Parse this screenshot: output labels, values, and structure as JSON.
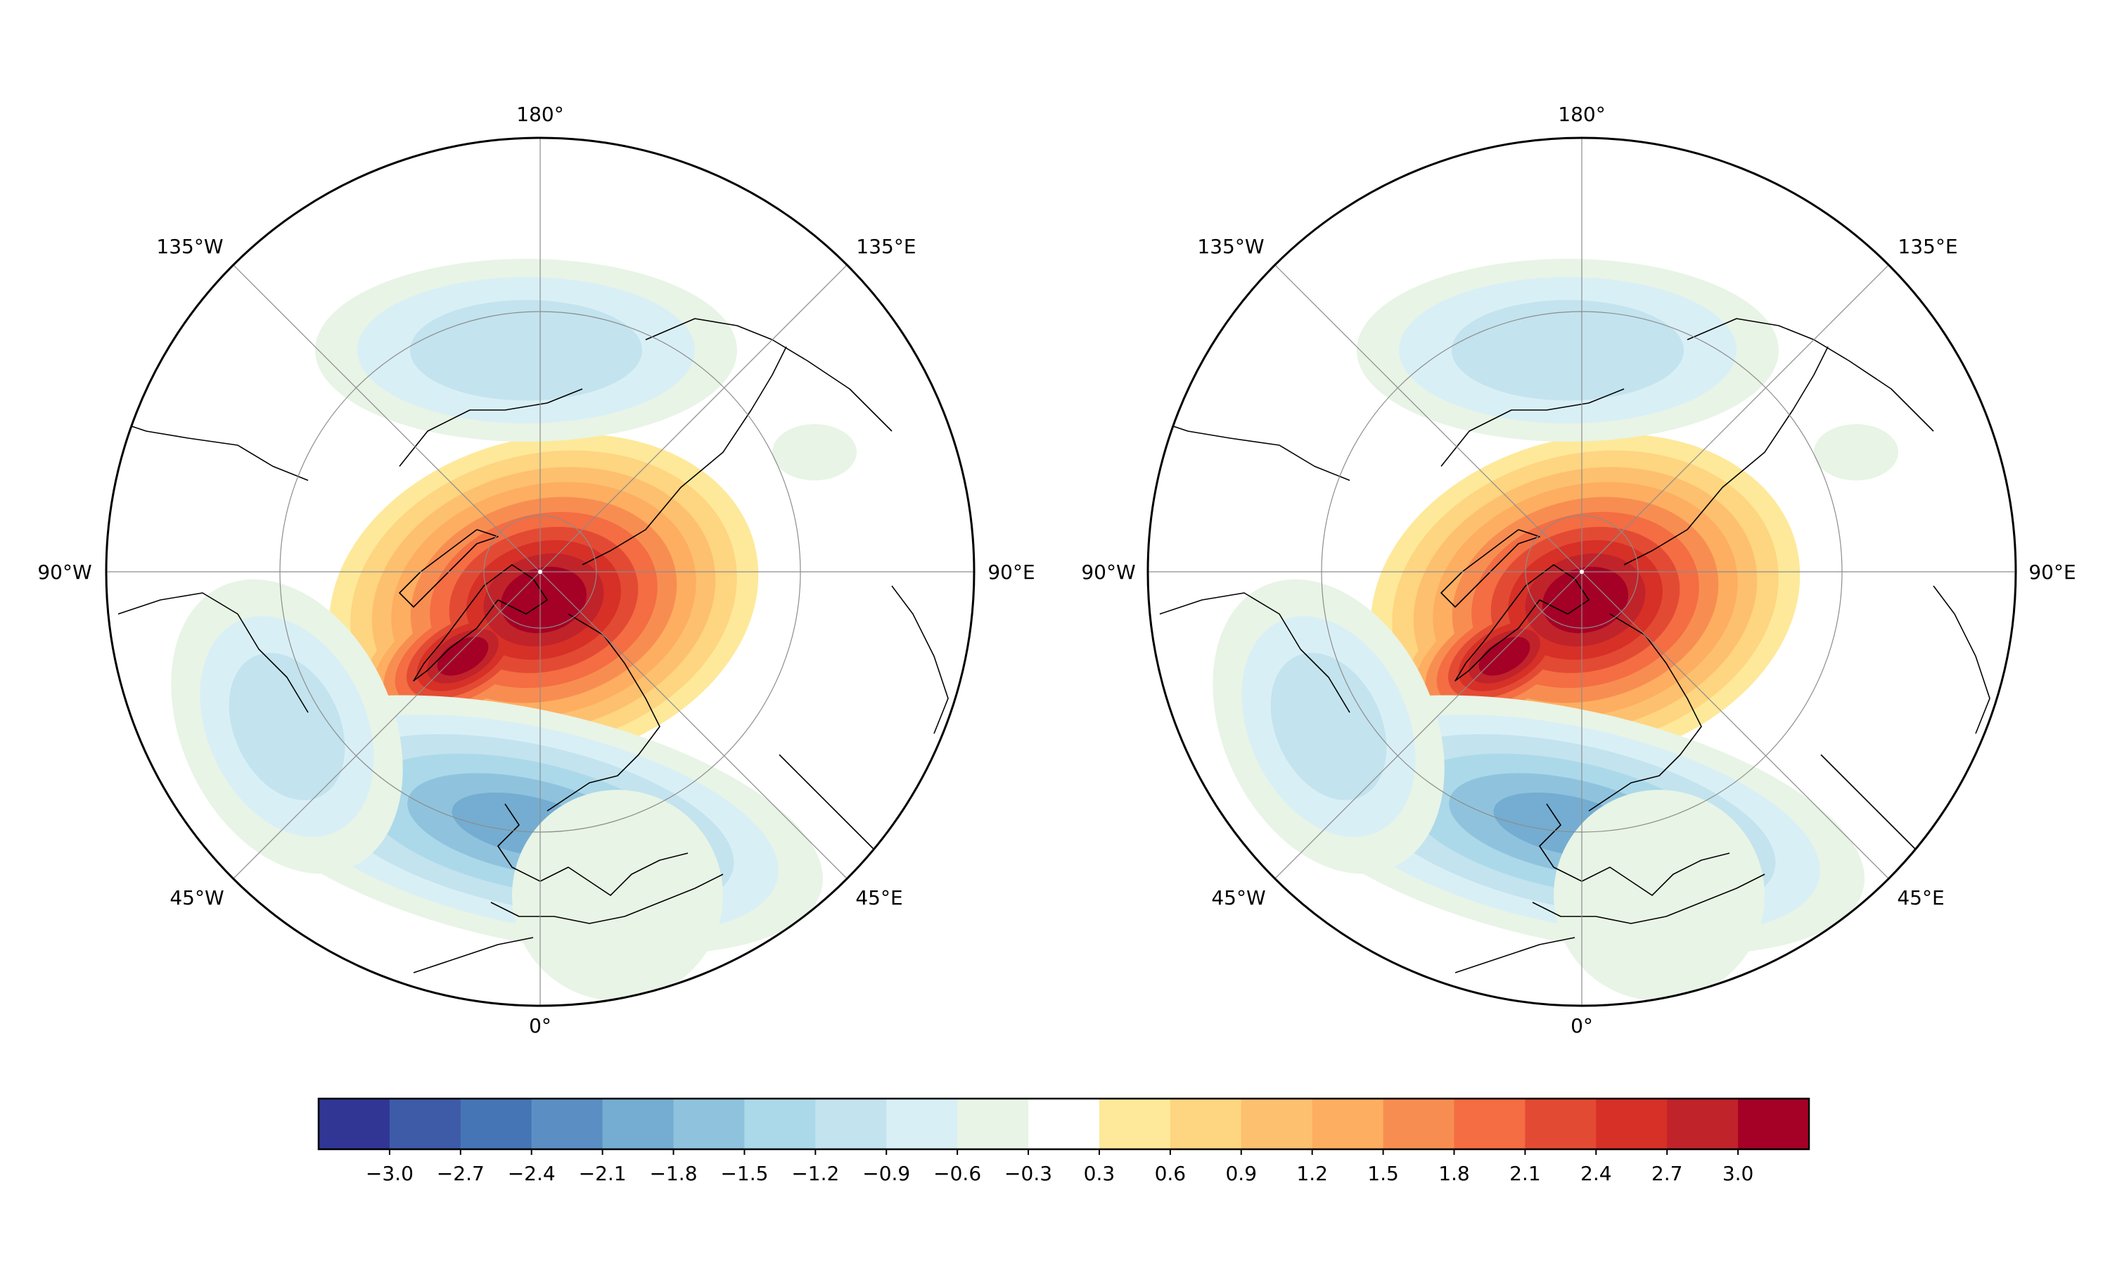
{
  "maps": [
    {
      "id": "left",
      "lon_labels": {
        "top": "180°",
        "top_right": "135°E",
        "right": "90°E",
        "bottom_right": "45°E",
        "bottom": "0°",
        "bottom_left": "45°W",
        "left": "90°W",
        "top_left": "135°W"
      }
    },
    {
      "id": "right",
      "lon_labels": {
        "top": "180°",
        "top_right": "135°E",
        "right": "90°E",
        "bottom_right": "45°E",
        "bottom": "0°",
        "bottom_left": "45°W",
        "left": "90°W",
        "top_left": "135°W"
      }
    }
  ],
  "colorbar": {
    "levels": [
      -3.3,
      -3.0,
      -2.7,
      -2.4,
      -2.1,
      -1.8,
      -1.5,
      -1.2,
      -0.9,
      -0.6,
      -0.3,
      0.3,
      0.6,
      0.9,
      1.2,
      1.5,
      1.8,
      2.1,
      2.4,
      2.7,
      3.0,
      3.3
    ],
    "tick_labels": [
      "−3.0",
      "−2.7",
      "−2.4",
      "−2.1",
      "−1.8",
      "−1.5",
      "−1.2",
      "−0.9",
      "−0.6",
      "−0.3",
      "0.3",
      "0.6",
      "0.9",
      "1.2",
      "1.5",
      "1.8",
      "2.1",
      "2.4",
      "2.7",
      "3.0"
    ],
    "colors": [
      "#313695",
      "#3e5ba8",
      "#4575b4",
      "#5b8fc3",
      "#74add1",
      "#8fc3dd",
      "#abd9e9",
      "#c3e3ee",
      "#d9eff6",
      "#e8f4e5",
      "#ffffff",
      "#fee99a",
      "#fed580",
      "#fdc06f",
      "#fdae61",
      "#f88d52",
      "#f46d43",
      "#e34a33",
      "#d73027",
      "#c0232a",
      "#a50026"
    ]
  },
  "colors": {
    "coastline": "#000000",
    "gridline": "#8c8c8c",
    "frame": "#000000"
  }
}
